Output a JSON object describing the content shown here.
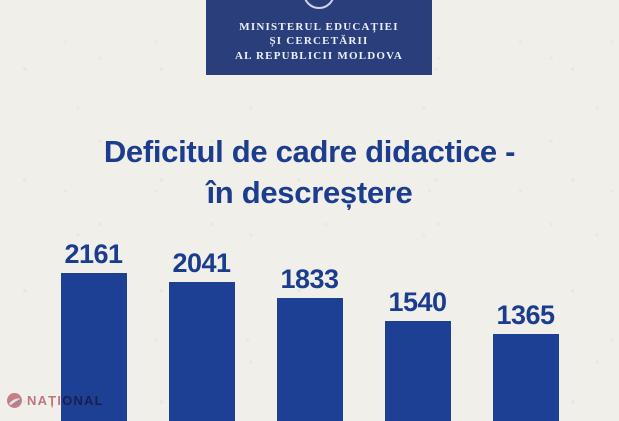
{
  "page": {
    "background_color": "#f1efea"
  },
  "header": {
    "banner_color": "#2b3e7c",
    "org_lines": [
      "MINISTERUL EDUCAȚIEI",
      "ȘI CERCETĂRII",
      "AL REPUBLICII MOLDOVA"
    ],
    "emblem": "ministry-emblem-arc"
  },
  "title": {
    "line1": "Deficitul de cadre didactice -",
    "line2": "în descreștere",
    "color": "#1c3c8e"
  },
  "chart_data": {
    "type": "bar",
    "categories": [
      "",
      "",
      "",
      "",
      ""
    ],
    "values": [
      2161,
      2041,
      1833,
      1540,
      1365
    ],
    "data_labels": [
      "2161",
      "2041",
      "1833",
      "1540",
      "1365"
    ],
    "title": "Deficitul de cadre didactice - în descreștere",
    "xlabel": "",
    "ylabel": "",
    "bar_color": "#1e4094",
    "label_color": "#1c3c8e",
    "legend": "none",
    "axes_shown": false,
    "note_layout": "bars cropped by bottom edge of image"
  },
  "watermark": {
    "text": "NAȚIONAL",
    "color": "#b5485c",
    "logo_icon": "national-logo"
  }
}
